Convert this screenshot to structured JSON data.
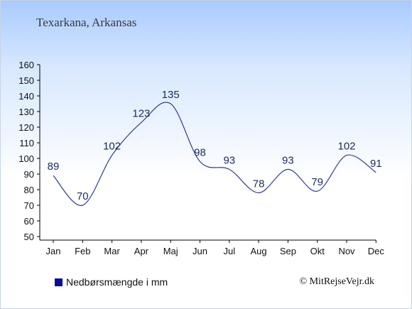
{
  "title": "Texarkana, Arkansas",
  "legend": {
    "label": "Nedbørsmængde i mm",
    "color": "#0b0b9e"
  },
  "credit": "© MitRejseVejr.dk",
  "colors": {
    "line": "#2f3a9c",
    "axis": "#000000"
  },
  "chart_data": {
    "type": "line",
    "categories": [
      "Jan",
      "Feb",
      "Mar",
      "Apr",
      "Maj",
      "Jun",
      "Jul",
      "Aug",
      "Sep",
      "Okt",
      "Nov",
      "Dec"
    ],
    "series": [
      {
        "name": "Nedbørsmængde i mm",
        "values": [
          89,
          70,
          102,
          123,
          135,
          98,
          93,
          78,
          93,
          79,
          102,
          91
        ]
      }
    ],
    "ylim": [
      50,
      160
    ],
    "yticks": [
      50,
      60,
      70,
      80,
      90,
      100,
      110,
      120,
      130,
      140,
      150,
      160
    ],
    "grid": false,
    "legend_position": "bottom-left"
  }
}
